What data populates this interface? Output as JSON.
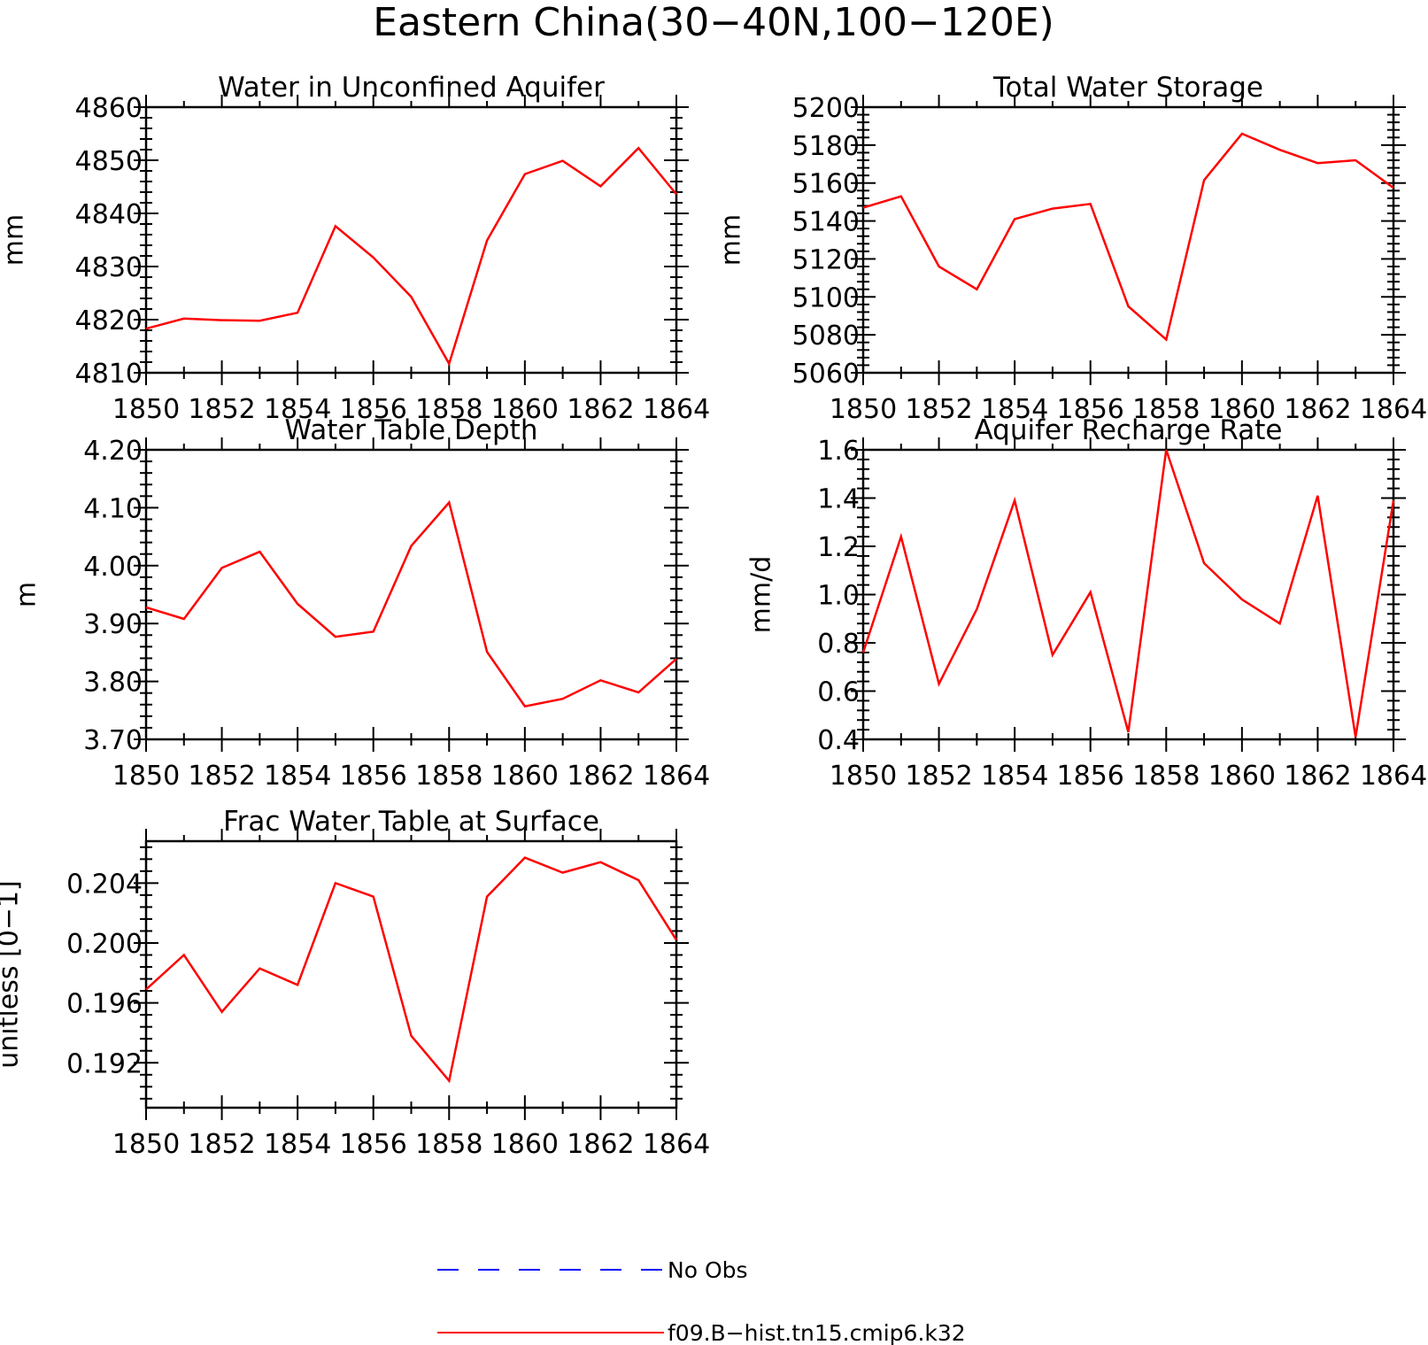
{
  "title": "Eastern China(30−40N,100−120E)",
  "colors": {
    "model": "#ff0000",
    "obs": "#0000ff",
    "axis": "#000000",
    "background": "#ffffff"
  },
  "legend": [
    {
      "label": "No Obs",
      "color": "#0000ff",
      "style": "dashed"
    },
    {
      "label": "f09.B−hist.tn15.cmip6.k32",
      "color": "#ff0000",
      "style": "solid"
    }
  ],
  "chart_data": [
    {
      "type": "line",
      "title": "Water in Unconfined Aquifer",
      "xlabel": "",
      "ylabel": "mm",
      "xlim": [
        1850,
        1864
      ],
      "ylim": [
        4810,
        4860
      ],
      "xticks": [
        1850,
        1852,
        1854,
        1856,
        1858,
        1860,
        1862,
        1864
      ],
      "yticks": [
        "4810",
        "4820",
        "4830",
        "4840",
        "4850",
        "4860"
      ],
      "x": [
        1850,
        1851,
        1852,
        1853,
        1854,
        1855,
        1856,
        1857,
        1858,
        1859,
        1860,
        1861,
        1862,
        1863,
        1864
      ],
      "series": [
        {
          "values": [
            4818.3,
            4820.2,
            4819.9,
            4819.8,
            4821.3,
            4837.6,
            4831.7,
            4824.3,
            4811.7,
            4834.9,
            4847.4,
            4849.9,
            4845.1,
            4852.3,
            4843.6
          ]
        }
      ]
    },
    {
      "type": "line",
      "title": "Total Water Storage",
      "xlabel": "",
      "ylabel": "mm",
      "xlim": [
        1850,
        1864
      ],
      "ylim": [
        5060,
        5200
      ],
      "xticks": [
        1850,
        1852,
        1854,
        1856,
        1858,
        1860,
        1862,
        1864
      ],
      "yticks": [
        "5060",
        "5080",
        "5100",
        "5120",
        "5140",
        "5160",
        "5180",
        "5200"
      ],
      "x": [
        1850,
        1851,
        1852,
        1853,
        1854,
        1855,
        1856,
        1857,
        1858,
        1859,
        1860,
        1861,
        1862,
        1863,
        1864
      ],
      "series": [
        {
          "values": [
            5147.0,
            5153.0,
            5116.0,
            5104.0,
            5141.0,
            5146.5,
            5149.0,
            5095.0,
            5077.5,
            5161.5,
            5186.0,
            5177.5,
            5170.5,
            5172.0,
            5157.5
          ]
        }
      ]
    },
    {
      "type": "line",
      "title": "Water Table Depth",
      "xlabel": "",
      "ylabel": "m",
      "xlim": [
        1850,
        1864
      ],
      "ylim": [
        3.7,
        4.2
      ],
      "xticks": [
        1850,
        1852,
        1854,
        1856,
        1858,
        1860,
        1862,
        1864
      ],
      "yticks": [
        "3.70",
        "3.80",
        "3.90",
        "4.00",
        "4.10",
        "4.20"
      ],
      "x": [
        1850,
        1851,
        1852,
        1853,
        1854,
        1855,
        1856,
        1857,
        1858,
        1859,
        1860,
        1861,
        1862,
        1863,
        1864
      ],
      "series": [
        {
          "values": [
            3.928,
            3.908,
            3.996,
            4.024,
            3.934,
            3.877,
            3.886,
            4.034,
            4.109,
            3.851,
            3.757,
            3.77,
            3.802,
            3.781,
            3.839
          ]
        }
      ]
    },
    {
      "type": "line",
      "title": "Aquifer Recharge Rate",
      "xlabel": "",
      "ylabel": "mm/d",
      "xlim": [
        1850,
        1864
      ],
      "ylim": [
        0.4,
        1.6
      ],
      "xticks": [
        1850,
        1852,
        1854,
        1856,
        1858,
        1860,
        1862,
        1864
      ],
      "yticks": [
        "0.4",
        "0.6",
        "0.8",
        "1.0",
        "1.2",
        "1.4",
        "1.6"
      ],
      "x": [
        1850,
        1851,
        1852,
        1853,
        1854,
        1855,
        1856,
        1857,
        1858,
        1859,
        1860,
        1861,
        1862,
        1863,
        1864
      ],
      "series": [
        {
          "values": [
            0.76,
            1.24,
            0.63,
            0.94,
            1.39,
            0.75,
            1.01,
            0.43,
            1.6,
            1.13,
            0.98,
            0.88,
            1.41,
            0.41,
            1.39
          ]
        }
      ]
    },
    {
      "type": "line",
      "title": "Frac Water Table at Surface",
      "xlabel": "",
      "ylabel": "unitless [0−1]",
      "xlim": [
        1850,
        1864
      ],
      "ylim": [
        0.189,
        0.2068
      ],
      "xticks": [
        1850,
        1852,
        1854,
        1856,
        1858,
        1860,
        1862,
        1864
      ],
      "yticks": [
        "0.192",
        "0.196",
        "0.200",
        "0.204"
      ],
      "x": [
        1850,
        1851,
        1852,
        1853,
        1854,
        1855,
        1856,
        1857,
        1858,
        1859,
        1860,
        1861,
        1862,
        1863,
        1864
      ],
      "series": [
        {
          "values": [
            0.1969,
            0.1992,
            0.1954,
            0.1983,
            0.1972,
            0.204,
            0.2031,
            0.1938,
            0.1908,
            0.2031,
            0.2057,
            0.2047,
            0.2054,
            0.2042,
            0.2002
          ]
        }
      ]
    }
  ]
}
